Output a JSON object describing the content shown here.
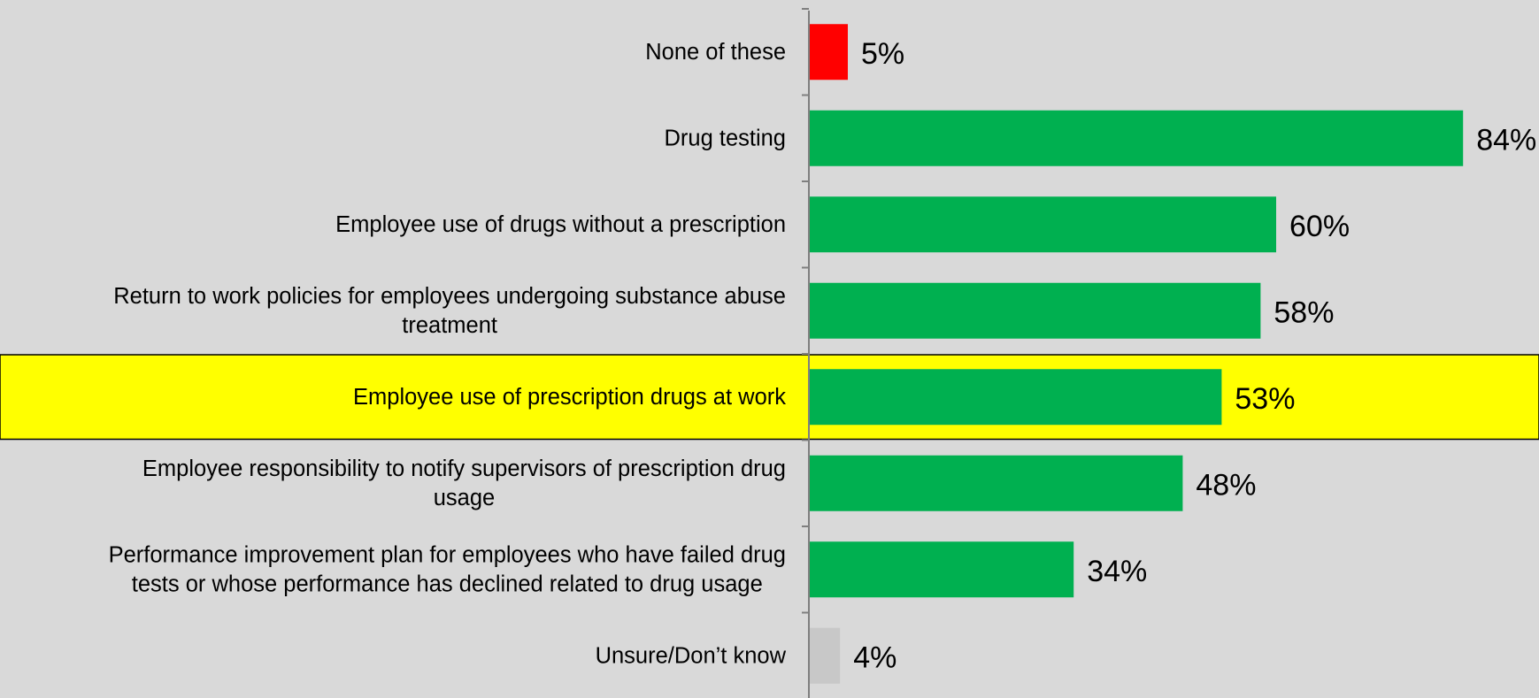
{
  "colors": {
    "background": "#d9d9d9",
    "bar_default": "#00b050",
    "bar_none": "#ff0000",
    "bar_unsure": "#c8c8c8",
    "highlight_band": "#ffff00",
    "axis": "#7f7f7f",
    "text": "#000000"
  },
  "chart_data": {
    "type": "bar",
    "orientation": "horizontal",
    "xlim": [
      0,
      84
    ],
    "grid": false,
    "legend": "none",
    "highlighted_category": "Employee use of prescription drugs at work",
    "categories": [
      {
        "label": [
          "None of these"
        ],
        "value": 5,
        "data_label": "5%",
        "color": "#ff0000"
      },
      {
        "label": [
          "Drug testing"
        ],
        "value": 84,
        "data_label": "84%",
        "color": "#00b050"
      },
      {
        "label": [
          "Employee use of drugs without a prescription"
        ],
        "value": 60,
        "data_label": "60%",
        "color": "#00b050"
      },
      {
        "label": [
          "Return to work policies for employees undergoing substance abuse",
          "treatment"
        ],
        "value": 58,
        "data_label": "58%",
        "color": "#00b050"
      },
      {
        "label": [
          "Employee use of prescription drugs at work"
        ],
        "value": 53,
        "data_label": "53%",
        "color": "#00b050",
        "highlight": true
      },
      {
        "label": [
          "Employee responsibility to notify supervisors of prescription drug",
          "usage"
        ],
        "value": 48,
        "data_label": "48%",
        "color": "#00b050"
      },
      {
        "label": [
          "Performance improvement plan for employees who have failed drug",
          "tests or whose performance has declined related to drug usage"
        ],
        "value": 34,
        "data_label": "34%",
        "color": "#00b050"
      },
      {
        "label": [
          "Unsure/Don’t know"
        ],
        "value": 4,
        "data_label": "4%",
        "color": "#c8c8c8"
      }
    ]
  }
}
